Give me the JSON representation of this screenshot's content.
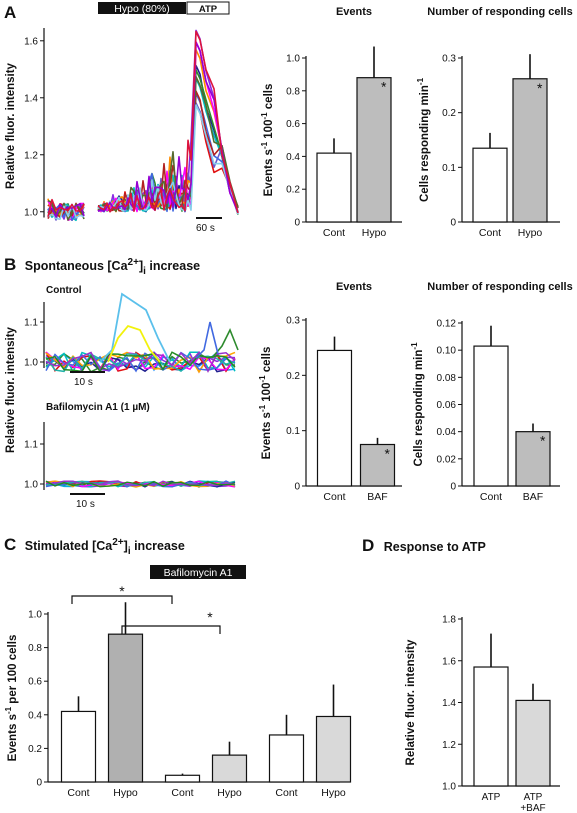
{
  "panels": {
    "A": {
      "letter": "A",
      "title": ""
    },
    "B": {
      "letter": "B",
      "title_main": "Spontaneous [Ca",
      "title_sup": "2+",
      "title_close": "]",
      "title_sub": "i",
      "title_tail": " increase"
    },
    "C": {
      "letter": "C",
      "title_main": "Stimulated [Ca",
      "title_sup": "2+",
      "title_close": "]",
      "title_sub": "i",
      "title_tail": " increase"
    },
    "D": {
      "letter": "D",
      "title": "Response to ATP"
    }
  },
  "bar_legend": {
    "hypo": "Hypo (80%)",
    "atp": "ATP",
    "baf": "Bafilomycin A1"
  },
  "labels": {
    "control": "Control",
    "bafilomycin": "Bafilomycin A1 (1 µM)",
    "scale_60s": "60 s",
    "scale_10s_top": "10 s",
    "scale_10s_bottom": "10 s",
    "star": "*"
  },
  "chart_data": [
    {
      "id": "A_trace",
      "type": "line",
      "ylabel": "Relative fluor. intensity",
      "ylim": [
        0.95,
        1.68
      ],
      "yticks": [
        "1.0",
        "1.2",
        "1.4",
        "1.6"
      ],
      "series_colors": [
        "#8a2be2",
        "#1f1f8f",
        "#e01010",
        "#2e8b2e",
        "#00bfbf",
        "#6a5acd",
        "#ff8c00",
        "#ff00ff",
        "#4169e1",
        "#b22222",
        "#556b2f",
        "#87ceeb",
        "#9400d3",
        "#dc143c"
      ]
    },
    {
      "id": "A_events",
      "type": "bar",
      "title": "Events",
      "ylabel": "Events s-1 100-1 cells",
      "ylabel_parts": [
        "Events s",
        "-1",
        " 100",
        "-1",
        " cells"
      ],
      "categories": [
        "Cont",
        "Hypo"
      ],
      "values": [
        0.42,
        0.88
      ],
      "errors": [
        0.09,
        0.19
      ],
      "fills": [
        "#ffffff",
        "#bdbdbd"
      ],
      "stars": [
        false,
        true
      ],
      "ylim": [
        0,
        1.0
      ],
      "yticks": [
        "0",
        "0.2",
        "0.4",
        "0.6",
        "0.8",
        "1.0"
      ]
    },
    {
      "id": "A_cells",
      "type": "bar",
      "title": "Number of responding cells",
      "ylabel": "Cells responding min-1",
      "ylabel_parts": [
        "Cells responding min",
        "-1"
      ],
      "categories": [
        "Cont",
        "Hypo"
      ],
      "values": [
        0.135,
        0.262
      ],
      "errors": [
        0.028,
        0.045
      ],
      "fills": [
        "#ffffff",
        "#bdbdbd"
      ],
      "stars": [
        false,
        true
      ],
      "ylim": [
        0,
        0.3
      ],
      "yticks": [
        "0",
        "0.1",
        "0.2",
        "0.3"
      ]
    },
    {
      "id": "B_trace",
      "type": "line",
      "ylabel": "Relative fluor. intensity",
      "yticks_top": [
        "1.0",
        "1.1"
      ],
      "yticks_bottom": [
        "1.0",
        "1.1"
      ]
    },
    {
      "id": "B_events",
      "type": "bar",
      "title": "Events",
      "ylabel": "Events s-1 100-1 cells",
      "ylabel_parts": [
        "Events s",
        "-1",
        " 100",
        "-1",
        " cells"
      ],
      "categories": [
        "Cont",
        "BAF"
      ],
      "values": [
        0.245,
        0.075
      ],
      "errors": [
        0.025,
        0.012
      ],
      "fills": [
        "#ffffff",
        "#bdbdbd"
      ],
      "stars": [
        false,
        true
      ],
      "ylim": [
        0,
        0.3
      ],
      "yticks": [
        "0",
        "0.1",
        "0.2",
        "0.3"
      ]
    },
    {
      "id": "B_cells",
      "type": "bar",
      "title": "Number of responding cells",
      "ylabel": "Cells responding min-1",
      "ylabel_parts": [
        "Cells responding min",
        "-1"
      ],
      "categories": [
        "Cont",
        "BAF"
      ],
      "values": [
        0.103,
        0.04
      ],
      "errors": [
        0.015,
        0.006
      ],
      "fills": [
        "#ffffff",
        "#bdbdbd"
      ],
      "stars": [
        false,
        true
      ],
      "ylim": [
        0,
        0.12
      ],
      "yticks": [
        "0",
        "0.02",
        "0.04",
        "0.06",
        "0.08",
        "0.10",
        "0.12"
      ]
    },
    {
      "id": "C_events",
      "type": "bar",
      "ylabel": "Events s-1 per 100 cells",
      "ylabel_parts": [
        "Events s",
        "-1",
        " per 100 cells"
      ],
      "categories": [
        "Cont",
        "Hypo",
        "Cont",
        "Hypo",
        "Cont",
        "Hypo"
      ],
      "values": [
        0.42,
        0.88,
        0.04,
        0.16,
        0.28,
        0.39
      ],
      "errors": [
        0.09,
        0.19,
        0.01,
        0.08,
        0.12,
        0.19
      ],
      "fills": [
        "#ffffff",
        "#b0b0b0",
        "#ffffff",
        "#d9d9d9",
        "#ffffff",
        "#d9d9d9"
      ],
      "ylim": [
        0,
        1.0
      ],
      "yticks": [
        "0",
        "0.2",
        "0.4",
        "0.6",
        "0.8",
        "1.0"
      ]
    },
    {
      "id": "D_atp",
      "type": "bar",
      "ylabel": "Relative fluor. intensity",
      "categories": [
        "ATP",
        "ATP +BAF"
      ],
      "category_lines": [
        [
          "ATP"
        ],
        [
          "ATP",
          "+BAF"
        ]
      ],
      "values": [
        1.57,
        1.41
      ],
      "errors": [
        0.16,
        0.08
      ],
      "fills": [
        "#ffffff",
        "#d9d9d9"
      ],
      "ylim": [
        1.0,
        1.8
      ],
      "yticks": [
        "1.0",
        "1.2",
        "1.4",
        "1.6",
        "1.8"
      ]
    }
  ]
}
